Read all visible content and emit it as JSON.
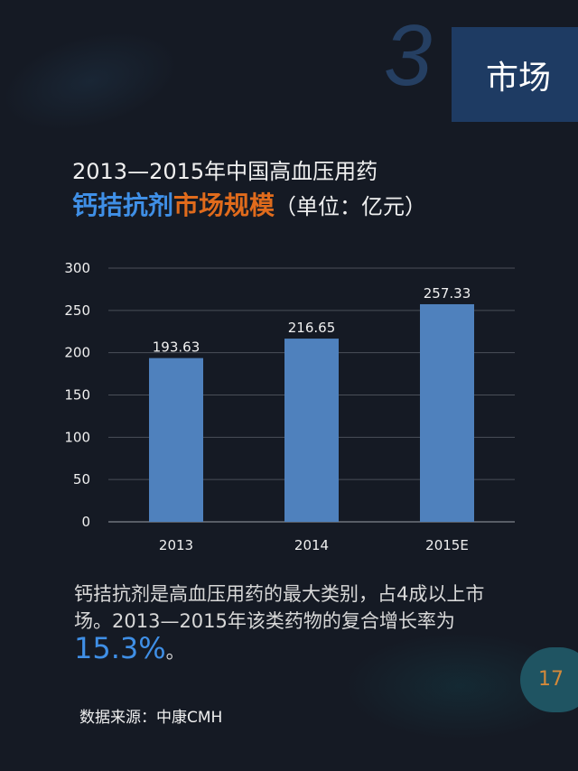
{
  "header": {
    "section_number": "3",
    "section_label": "市场"
  },
  "title": {
    "line1": "2013—2015年中国高血压用药",
    "highlight_blue": "钙拮抗剂",
    "highlight_orange": "市场规模",
    "unit": "（单位：亿元）"
  },
  "chart_data": {
    "type": "bar",
    "categories": [
      "2013",
      "2014",
      "2015E"
    ],
    "values": [
      193.63,
      216.65,
      257.33
    ],
    "value_labels": [
      "193.63",
      "216.65",
      "257.33"
    ],
    "ylim": [
      0,
      300
    ],
    "yticks": [
      "0",
      "50",
      "100",
      "150",
      "200",
      "250",
      "300"
    ],
    "grid": true,
    "bar_color": "#4f81bd"
  },
  "description": {
    "text": "钙拮抗剂是高血压用药的最大类别，占4成以上市场。2013—2015年该类药物的复合增长率为",
    "rate": "15.3%",
    "end": "。"
  },
  "source": "数据来源：中康CMH",
  "page_number": "17",
  "colors": {
    "accent_blue": "#3f8fe6",
    "accent_orange": "#e06b1c",
    "background": "#151a24"
  }
}
